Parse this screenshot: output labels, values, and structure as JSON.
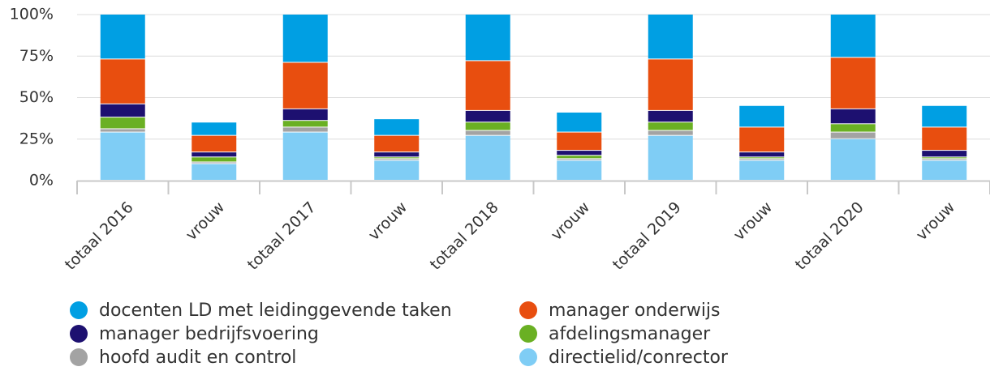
{
  "chart_data": {
    "type": "stacked_bar",
    "categories": [
      "totaal 2016",
      "vrouw",
      "totaal 2017",
      "vrouw",
      "totaal 2018",
      "vrouw",
      "totaal 2019",
      "vrouw",
      "totaal 2020",
      "vrouw"
    ],
    "series": [
      {
        "name": "directielid/conrector",
        "color": "#7fcdf5",
        "values": [
          29,
          10,
          29,
          12,
          27,
          12,
          27,
          12,
          25,
          12
        ]
      },
      {
        "name": "hoofd audit en control",
        "color": "#a3a3a3",
        "values": [
          2,
          1,
          3,
          1,
          3,
          1,
          3,
          1,
          4,
          1
        ]
      },
      {
        "name": "afdelingsmanager",
        "color": "#6ab023",
        "values": [
          7,
          3,
          4,
          1,
          5,
          2,
          5,
          1,
          5,
          1
        ]
      },
      {
        "name": "manager bedrijfsvoering",
        "color": "#1d1070",
        "values": [
          8,
          3,
          7,
          3,
          7,
          3,
          7,
          3,
          9,
          4
        ]
      },
      {
        "name": "manager onderwijs",
        "color": "#e84e0f",
        "values": [
          27,
          10,
          28,
          10,
          30,
          11,
          31,
          15,
          31,
          14
        ]
      },
      {
        "name": "docenten LD met leidinggevende taken",
        "color": "#009fe3",
        "values": [
          27,
          8,
          29,
          10,
          28,
          12,
          27,
          13,
          26,
          13
        ]
      }
    ],
    "ylim": [
      0,
      100
    ],
    "yticks": [
      {
        "value": 0,
        "label": "0%"
      },
      {
        "value": 25,
        "label": "25%"
      },
      {
        "value": 50,
        "label": "50%"
      },
      {
        "value": 75,
        "label": "75%"
      },
      {
        "value": 100,
        "label": "100%"
      }
    ],
    "grid": true
  }
}
